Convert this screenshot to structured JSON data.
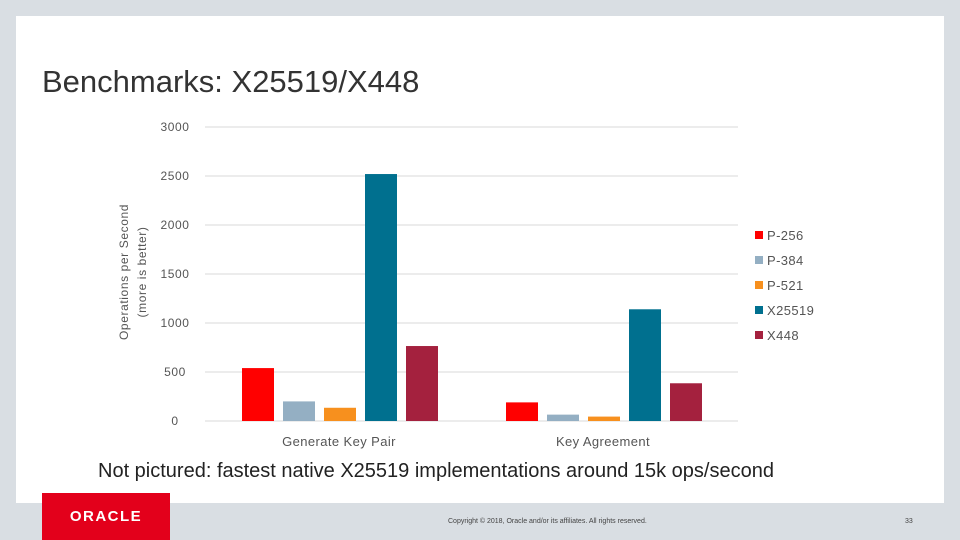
{
  "slide": {
    "title": "Benchmarks: X25519/X448",
    "note": "Not pictured: fastest native X25519 implementations around 15k ops/second",
    "logo_text": "ORACLE",
    "copyright": "Copyright © 2018, Oracle and/or its affiliates. All rights reserved.",
    "page_number": "33"
  },
  "chart_data": {
    "type": "bar",
    "ylabel_line1": "Operations per Second",
    "ylabel_line2": "(more is better)",
    "ylim": [
      0,
      3000
    ],
    "yticks": [
      0,
      500,
      1000,
      1500,
      2000,
      2500,
      3000
    ],
    "categories": [
      "Generate Key Pair",
      "Key Agreement"
    ],
    "grid": true,
    "legend_position": "right",
    "series": [
      {
        "name": "P-256",
        "color": "#ff0000",
        "values": [
          540,
          190
        ]
      },
      {
        "name": "P-384",
        "color": "#94afc3",
        "values": [
          200,
          65
        ]
      },
      {
        "name": "P-521",
        "color": "#f7901e",
        "values": [
          135,
          45
        ]
      },
      {
        "name": "X25519",
        "color": "#00708f",
        "values": [
          2520,
          1140
        ]
      },
      {
        "name": "X448",
        "color": "#a4213e",
        "values": [
          765,
          385
        ]
      }
    ]
  }
}
